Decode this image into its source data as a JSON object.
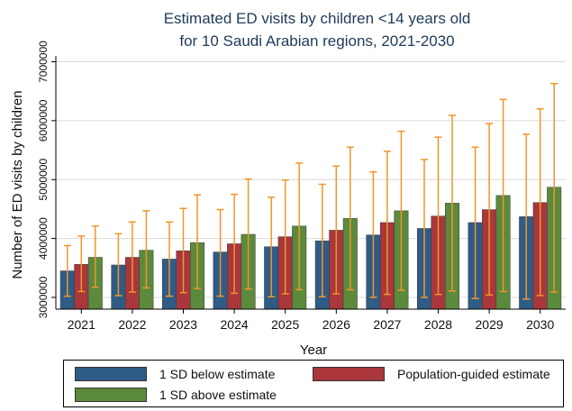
{
  "chart_data": {
    "type": "bar",
    "title": "Estimated ED visits by children <14 years old",
    "subtitle": "for 10 Saudi Arabian regions, 2021-2030",
    "xlabel": "Year",
    "ylabel": "Number of ED visits by children",
    "ylim": [
      2800000,
      7100000
    ],
    "yticks": [
      3000000,
      4000000,
      5000000,
      6000000,
      7000000
    ],
    "ytick_labels": [
      "3000000",
      "4000000",
      "5000000",
      "6000000",
      "7000000"
    ],
    "grid": true,
    "legend_position": "bottom",
    "categories": [
      "2021",
      "2022",
      "2023",
      "2024",
      "2025",
      "2026",
      "2027",
      "2028",
      "2029",
      "2030"
    ],
    "series": [
      {
        "name": "1 SD below estimate",
        "color": "#2f5c86",
        "values": [
          3450000,
          3550000,
          3650000,
          3770000,
          3860000,
          3960000,
          4060000,
          4170000,
          4270000,
          4370000
        ],
        "error_low": [
          3020000,
          3030000,
          3020000,
          3020000,
          3010000,
          3010000,
          3000000,
          3000000,
          2980000,
          2970000
        ],
        "error_high": [
          3880000,
          4080000,
          4280000,
          4490000,
          4700000,
          4920000,
          5130000,
          5340000,
          5550000,
          5770000
        ]
      },
      {
        "name": "Population-guided estimate",
        "color": "#a9373b",
        "values": [
          3560000,
          3680000,
          3790000,
          3910000,
          4030000,
          4140000,
          4270000,
          4380000,
          4490000,
          4610000
        ],
        "error_low": [
          3100000,
          3090000,
          3080000,
          3070000,
          3060000,
          3060000,
          3050000,
          3050000,
          3040000,
          3030000
        ],
        "error_high": [
          4040000,
          4280000,
          4510000,
          4750000,
          4990000,
          5230000,
          5480000,
          5720000,
          5950000,
          6200000
        ]
      },
      {
        "name": "1 SD above estimate",
        "color": "#5b8a3d",
        "values": [
          3680000,
          3800000,
          3930000,
          4070000,
          4210000,
          4340000,
          4470000,
          4600000,
          4730000,
          4870000
        ],
        "error_low": [
          3170000,
          3160000,
          3150000,
          3140000,
          3130000,
          3130000,
          3120000,
          3110000,
          3100000,
          3090000
        ],
        "error_high": [
          4210000,
          4470000,
          4740000,
          5010000,
          5280000,
          5550000,
          5820000,
          6090000,
          6360000,
          6630000
        ]
      }
    ],
    "error_bar_color": "#f0962a"
  }
}
